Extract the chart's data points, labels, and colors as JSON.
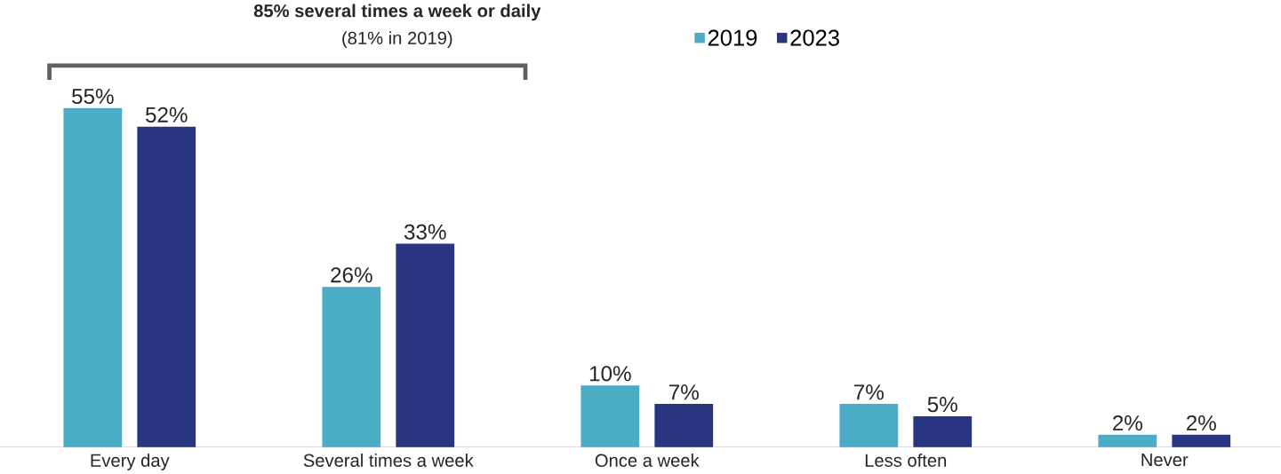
{
  "chart_data": {
    "type": "bar",
    "annotations": [
      "85% several times a week or daily",
      "(81% in 2019)"
    ],
    "categories": [
      "Every day",
      "Several times a week",
      "Once a week",
      "Less often",
      "Never"
    ],
    "series": [
      {
        "name": "2019",
        "color": "#4bacc6",
        "values": [
          55,
          26,
          10,
          7,
          2
        ],
        "value_labels": [
          "55%",
          "26%",
          "10%",
          "7%",
          "2%"
        ]
      },
      {
        "name": "2023",
        "color": "#283580",
        "values": [
          52,
          33,
          7,
          5,
          2
        ],
        "value_labels": [
          "52%",
          "33%",
          "7%",
          "5%",
          "2%"
        ]
      }
    ],
    "legend": "top"
  }
}
